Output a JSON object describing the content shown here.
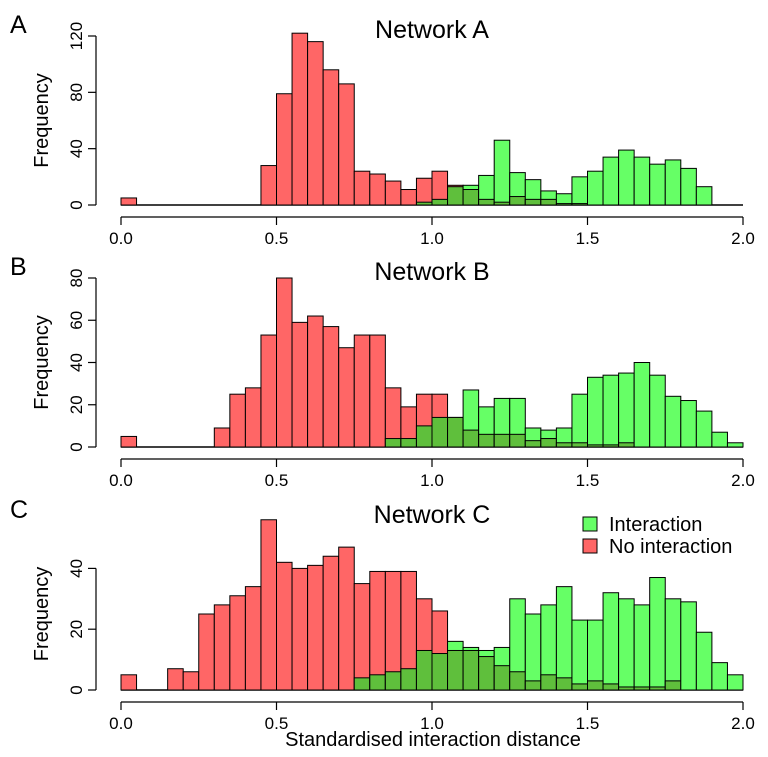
{
  "figure": {
    "xlabel": "Standardised interaction distance",
    "legend": {
      "position": "top-right",
      "entries": [
        {
          "label": "Interaction",
          "color": "#66ff66"
        },
        {
          "label": "No interaction",
          "color": "#ff6666"
        }
      ]
    }
  },
  "chart_data": [
    {
      "type": "bar",
      "panel_letter": "A",
      "title": "Network A",
      "ylabel": "Frequency",
      "xlim": [
        0,
        2.0
      ],
      "ylim": [
        0,
        120
      ],
      "xticks": [
        "0.0",
        "0.5",
        "1.0",
        "1.5",
        "2.0"
      ],
      "yticks": [
        "0",
        "40",
        "80",
        "120"
      ],
      "bin_width": 0.05,
      "bin_starts": [
        0.0,
        0.05,
        0.1,
        0.15,
        0.2,
        0.25,
        0.3,
        0.35,
        0.4,
        0.45,
        0.5,
        0.55,
        0.6,
        0.65,
        0.7,
        0.75,
        0.8,
        0.85,
        0.9,
        0.95,
        1.0,
        1.05,
        1.1,
        1.15,
        1.2,
        1.25,
        1.3,
        1.35,
        1.4,
        1.45,
        1.5,
        1.55,
        1.6,
        1.65,
        1.7,
        1.75,
        1.8,
        1.85,
        1.9,
        1.95
      ],
      "series": [
        {
          "name": "No interaction",
          "color": "#ff6666",
          "values": [
            5,
            0,
            0,
            0,
            0,
            0,
            0,
            0,
            0,
            28,
            79,
            122,
            116,
            96,
            86,
            24,
            22,
            17,
            11,
            19,
            24,
            14,
            11,
            4,
            2,
            6,
            4,
            4,
            1,
            1,
            0,
            0,
            0,
            0,
            0,
            0,
            0,
            0,
            0,
            0
          ]
        },
        {
          "name": "Interaction",
          "color": "#66ff66",
          "values": [
            0,
            0,
            0,
            0,
            0,
            0,
            0,
            0,
            0,
            0,
            0,
            0,
            0,
            0,
            0,
            0,
            0,
            0,
            0,
            2,
            4,
            13,
            14,
            21,
            46,
            23,
            18,
            10,
            8,
            20,
            24,
            34,
            39,
            34,
            29,
            32,
            26,
            13,
            0,
            0
          ]
        }
      ]
    },
    {
      "type": "bar",
      "panel_letter": "B",
      "title": "Network B",
      "ylabel": "Frequency",
      "xlim": [
        0,
        2.0
      ],
      "ylim": [
        0,
        80
      ],
      "xticks": [
        "0.0",
        "0.5",
        "1.0",
        "1.5",
        "2.0"
      ],
      "yticks": [
        "0",
        "20",
        "40",
        "60",
        "80"
      ],
      "bin_width": 0.05,
      "bin_starts": [
        0.0,
        0.05,
        0.1,
        0.15,
        0.2,
        0.25,
        0.3,
        0.35,
        0.4,
        0.45,
        0.5,
        0.55,
        0.6,
        0.65,
        0.7,
        0.75,
        0.8,
        0.85,
        0.9,
        0.95,
        1.0,
        1.05,
        1.1,
        1.15,
        1.2,
        1.25,
        1.3,
        1.35,
        1.4,
        1.45,
        1.5,
        1.55,
        1.6,
        1.65,
        1.7,
        1.75,
        1.8,
        1.85,
        1.9,
        1.95
      ],
      "series": [
        {
          "name": "No interaction",
          "color": "#ff6666",
          "values": [
            5,
            0,
            0,
            0,
            0,
            0,
            9,
            25,
            28,
            53,
            80,
            59,
            62,
            57,
            47,
            53,
            53,
            28,
            19,
            25,
            25,
            14,
            8,
            6,
            6,
            6,
            3,
            4,
            2,
            2,
            1,
            1,
            2,
            0,
            0,
            0,
            0,
            0,
            0,
            0
          ]
        },
        {
          "name": "Interaction",
          "color": "#66ff66",
          "values": [
            0,
            0,
            0,
            0,
            0,
            0,
            0,
            0,
            0,
            0,
            0,
            0,
            0,
            0,
            0,
            0,
            0,
            4,
            4,
            10,
            14,
            14,
            27,
            19,
            23,
            23,
            9,
            8,
            9,
            25,
            33,
            34,
            35,
            40,
            34,
            24,
            22,
            17,
            7,
            2
          ]
        }
      ]
    },
    {
      "type": "bar",
      "panel_letter": "C",
      "title": "Network C",
      "ylabel": "Frequency",
      "xlim": [
        0,
        2.0
      ],
      "ylim": [
        0,
        50
      ],
      "xticks": [
        "0.0",
        "0.5",
        "1.0",
        "1.5",
        "2.0"
      ],
      "yticks": [
        "0",
        "20",
        "40"
      ],
      "bin_width": 0.05,
      "bin_starts": [
        0.0,
        0.05,
        0.1,
        0.15,
        0.2,
        0.25,
        0.3,
        0.35,
        0.4,
        0.45,
        0.5,
        0.55,
        0.6,
        0.65,
        0.7,
        0.75,
        0.8,
        0.85,
        0.9,
        0.95,
        1.0,
        1.05,
        1.1,
        1.15,
        1.2,
        1.25,
        1.3,
        1.35,
        1.4,
        1.45,
        1.5,
        1.55,
        1.6,
        1.65,
        1.7,
        1.75,
        1.8,
        1.85,
        1.9,
        1.95
      ],
      "series": [
        {
          "name": "No interaction",
          "color": "#ff6666",
          "values": [
            5,
            0,
            0,
            7,
            6,
            25,
            28,
            31,
            34,
            56,
            42,
            40,
            41,
            44,
            47,
            35,
            39,
            39,
            39,
            30,
            26,
            13,
            13,
            11,
            8,
            6,
            3,
            5,
            4,
            2,
            3,
            2,
            1,
            1,
            1,
            3,
            0,
            0,
            0,
            0
          ]
        },
        {
          "name": "Interaction",
          "color": "#66ff66",
          "values": [
            0,
            0,
            0,
            0,
            0,
            0,
            0,
            0,
            0,
            0,
            0,
            0,
            0,
            0,
            0,
            4,
            5,
            6,
            7,
            13,
            12,
            16,
            14,
            13,
            14,
            30,
            25,
            28,
            34,
            23,
            23,
            32,
            30,
            28,
            37,
            30,
            29,
            19,
            9,
            5
          ]
        }
      ]
    }
  ]
}
